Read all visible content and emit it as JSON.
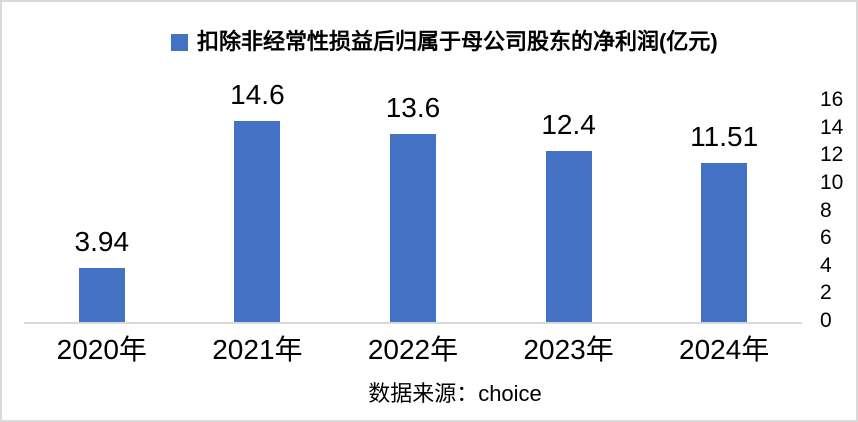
{
  "legend": {
    "label": "扣除非经常性损益后归属于母公司股东的净利润(亿元)"
  },
  "chart_data": {
    "type": "bar",
    "title": "扣除非经常性损益后归属于母公司股东的净利润(亿元)",
    "categories": [
      "2020年",
      "2021年",
      "2022年",
      "2023年",
      "2024年"
    ],
    "values": [
      3.94,
      14.6,
      13.6,
      12.4,
      11.51
    ],
    "value_labels": [
      "3.94",
      "14.6",
      "13.6",
      "12.4",
      "11.51"
    ],
    "xlabel": "",
    "ylabel": "",
    "ylim": [
      0,
      16
    ],
    "y_ticks": [
      0,
      2,
      4,
      6,
      8,
      10,
      12,
      14,
      16
    ],
    "y_axis_side": "right",
    "legend_position": "top",
    "grid": false,
    "data_labels_shown": true
  },
  "source_note": "数据来源：choice",
  "colors": {
    "bar": "#4472C4",
    "axis_line": "#D9D9D9",
    "canvas_border": "#D9D9D9",
    "text": "#000000"
  }
}
